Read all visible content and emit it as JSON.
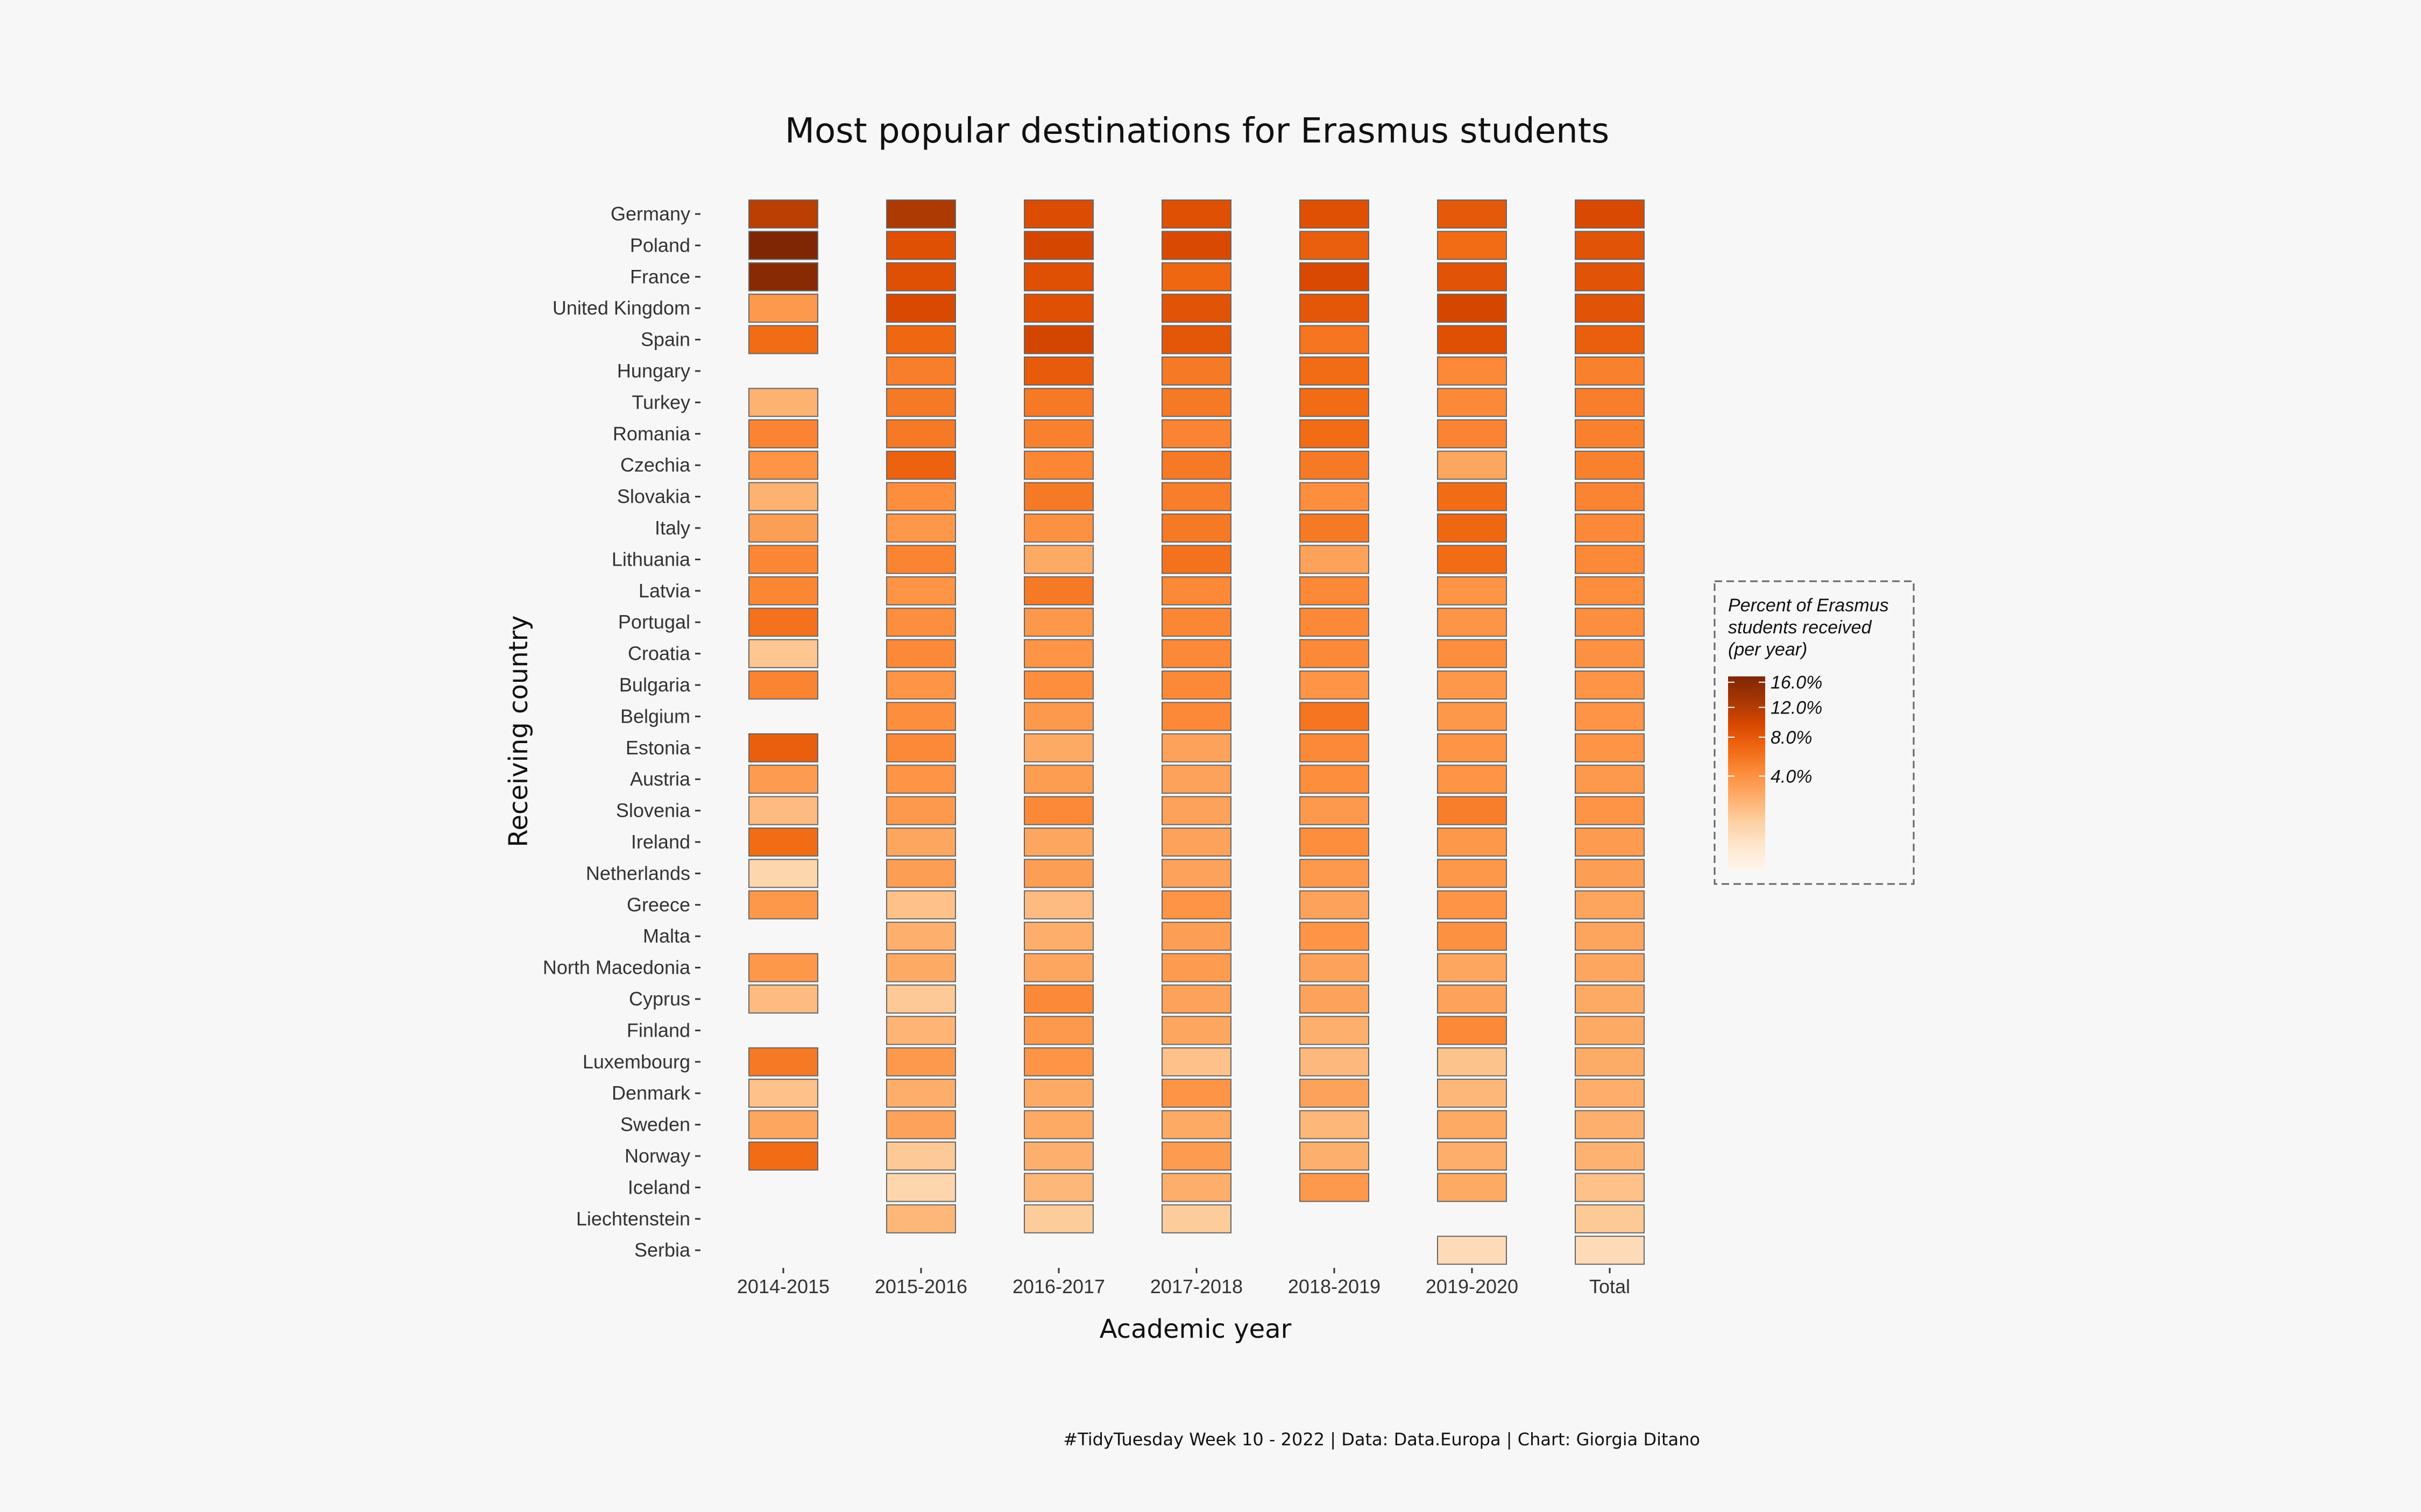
{
  "chart_data": {
    "type": "heatmap",
    "title": "Most popular destinations for Erasmus students",
    "xlabel": "Academic year",
    "ylabel": "Receiving country",
    "caption": "#TidyTuesday Week 10 - 2022 | Data: Data.Europa | Chart: Giorgia Ditano",
    "legend": {
      "title_lines": [
        "Percent of Erasmus",
        "students received",
        "(per year)"
      ],
      "placement": "right",
      "range": [
        0,
        17
      ],
      "ticks": [
        {
          "value": 16,
          "label": "16.0%"
        },
        {
          "value": 12,
          "label": "12.0%"
        },
        {
          "value": 8,
          "label": "8.0%"
        },
        {
          "value": 4,
          "label": "4.0%"
        }
      ],
      "scale": "sqrt"
    },
    "colors": {
      "low": "#fff5eb",
      "high": "#7f2704",
      "background": "#f7f7f7",
      "tile_border": "#666666"
    },
    "x": [
      "2014-2015",
      "2015-2016",
      "2016-2017",
      "2017-2018",
      "2018-2019",
      "2019-2020",
      "Total"
    ],
    "y": [
      "Germany",
      "Poland",
      "France",
      "United Kingdom",
      "Spain",
      "Hungary",
      "Turkey",
      "Romania",
      "Czechia",
      "Slovakia",
      "Italy",
      "Lithuania",
      "Latvia",
      "Portugal",
      "Croatia",
      "Bulgaria",
      "Belgium",
      "Estonia",
      "Austria",
      "Slovenia",
      "Ireland",
      "Netherlands",
      "Greece",
      "Malta",
      "North Macedonia",
      "Cyprus",
      "Finland",
      "Luxembourg",
      "Denmark",
      "Sweden",
      "Norway",
      "Iceland",
      "Liechtenstein",
      "Serbia"
    ],
    "values": [
      [
        11.5,
        12.5,
        9.2,
        8.8,
        8.8,
        8.0,
        9.5
      ],
      [
        17.0,
        8.8,
        9.8,
        9.5,
        7.5,
        6.5,
        8.5
      ],
      [
        16.0,
        8.8,
        8.8,
        6.8,
        9.5,
        8.5,
        8.5
      ],
      [
        3.5,
        9.5,
        8.8,
        8.5,
        8.2,
        9.8,
        8.5
      ],
      [
        6.5,
        6.8,
        10.0,
        8.2,
        5.8,
        8.8,
        7.5
      ],
      [
        null,
        5.2,
        7.8,
        5.5,
        6.5,
        4.5,
        5.0
      ],
      [
        2.2,
        5.5,
        5.5,
        5.5,
        6.5,
        4.5,
        5.2
      ],
      [
        4.8,
        5.5,
        5.0,
        4.8,
        6.5,
        4.8,
        5.0
      ],
      [
        3.8,
        7.2,
        4.6,
        5.5,
        5.5,
        2.8,
        5.0
      ],
      [
        2.2,
        4.2,
        5.5,
        5.2,
        4.2,
        6.5,
        4.8
      ],
      [
        3.2,
        3.6,
        4.0,
        5.5,
        5.5,
        6.8,
        4.5
      ],
      [
        4.6,
        4.8,
        2.6,
        6.0,
        3.0,
        6.5,
        4.5
      ],
      [
        4.6,
        3.8,
        5.5,
        4.5,
        4.5,
        3.8,
        4.2
      ],
      [
        6.0,
        4.2,
        3.6,
        4.6,
        4.5,
        3.8,
        4.2
      ],
      [
        1.4,
        4.5,
        3.8,
        4.5,
        4.5,
        4.2,
        4.0
      ],
      [
        4.8,
        3.8,
        4.2,
        4.5,
        3.8,
        3.6,
        3.8
      ],
      [
        null,
        4.2,
        3.5,
        4.5,
        5.8,
        3.6,
        3.8
      ],
      [
        7.5,
        4.5,
        2.6,
        3.0,
        4.5,
        3.8,
        3.8
      ],
      [
        3.4,
        3.8,
        3.3,
        3.0,
        4.2,
        3.8,
        3.5
      ],
      [
        1.8,
        3.5,
        4.5,
        3.0,
        3.5,
        5.2,
        3.8
      ],
      [
        6.5,
        2.8,
        2.8,
        3.0,
        4.2,
        3.6,
        3.4
      ],
      [
        0.8,
        3.2,
        3.2,
        3.0,
        3.5,
        3.6,
        3.2
      ],
      [
        3.6,
        1.6,
        1.8,
        3.8,
        3.0,
        3.8,
        2.9
      ],
      [
        null,
        2.3,
        2.4,
        3.2,
        3.8,
        4.0,
        2.9
      ],
      [
        3.6,
        2.6,
        2.8,
        3.4,
        3.0,
        2.8,
        2.8
      ],
      [
        1.8,
        1.3,
        4.5,
        3.0,
        3.0,
        3.0,
        2.6
      ],
      [
        null,
        2.1,
        3.5,
        2.8,
        2.3,
        4.5,
        2.6
      ],
      [
        5.5,
        3.5,
        3.8,
        1.6,
        1.9,
        1.5,
        2.5
      ],
      [
        1.6,
        2.4,
        2.6,
        3.8,
        3.0,
        2.0,
        2.4
      ],
      [
        2.8,
        3.0,
        2.6,
        2.6,
        2.0,
        2.6,
        2.3
      ],
      [
        6.5,
        1.3,
        2.3,
        3.4,
        2.3,
        2.4,
        2.2
      ],
      [
        null,
        0.8,
        2.0,
        2.4,
        3.5,
        2.6,
        1.6
      ],
      [
        null,
        2.0,
        1.2,
        1.2,
        null,
        null,
        1.3
      ],
      [
        null,
        null,
        null,
        null,
        null,
        0.6,
        0.6
      ]
    ]
  }
}
